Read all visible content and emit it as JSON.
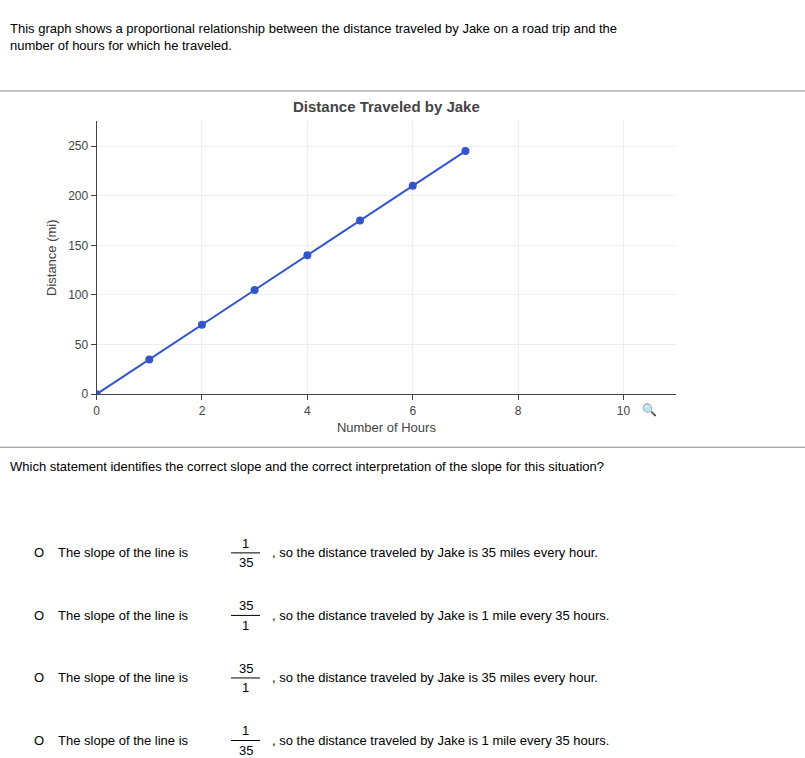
{
  "chart_data": {
    "type": "line",
    "title": "Distance Traveled by Jake",
    "subtitle": "This graph shows a proportional relationship between the distance traveled by Jake on a road trip and the\nnumber of hours for which he traveled.",
    "xlabel": "Number of Hours",
    "ylabel": "Distance (mi)",
    "x": [
      0,
      1,
      2,
      3,
      4,
      5,
      6,
      7
    ],
    "values": [
      0,
      35,
      70,
      105,
      140,
      175,
      210,
      245
    ],
    "color": "#3355cc",
    "marker": "circle",
    "xlim": [
      0,
      11
    ],
    "ylim": [
      0,
      275
    ],
    "xticks": [
      0,
      2,
      4,
      6,
      8,
      10
    ],
    "yticks": [
      0,
      50,
      100,
      150,
      200,
      250
    ],
    "grid": true,
    "annotations": [
      "🔍",
      "Which statement identifies the correct slope and the correct interpretation of the slope for this situation?"
    ],
    "options": [
      {
        "circle": "O",
        "prefix": "The slope of the line is ",
        "frac_num": "1",
        "frac_den": "35",
        "suffix": ", so the distance traveled by Jake is 35 miles every hour."
      },
      {
        "circle": "O",
        "prefix": "The slope of the line is ",
        "frac_num": "35",
        "frac_den": "1",
        "suffix": ", so the distance traveled by Jake is 1 mile every 35 hours."
      },
      {
        "circle": "O",
        "prefix": "The slope of the line is ",
        "frac_num": "35",
        "frac_den": "1",
        "suffix": ", so the distance traveled by Jake is 35 miles every hour."
      },
      {
        "circle": "O",
        "prefix": "The slope of the line is ",
        "frac_num": "1",
        "frac_den": "35",
        "suffix": ", so the distance traveled by Jake is 1 mile every 35 hours."
      }
    ]
  }
}
